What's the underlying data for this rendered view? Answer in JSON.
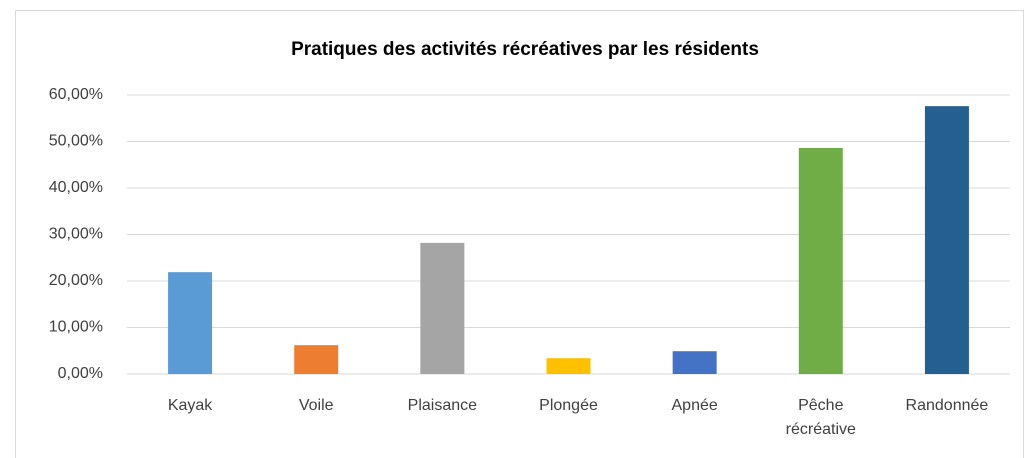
{
  "chart_data": {
    "type": "bar",
    "title": "Pratiques des activités récréatives par les résidents",
    "categories": [
      "Kayak",
      "Voile",
      "Plaisance",
      "Plongée",
      "Apnée",
      "Pêche récréative",
      "Randonnée"
    ],
    "values": [
      21.9,
      6.2,
      28.2,
      3.4,
      4.9,
      48.6,
      57.6
    ],
    "colors": [
      "#5b9bd5",
      "#ed7d31",
      "#a5a5a5",
      "#ffc000",
      "#4472c4",
      "#70ad47",
      "#255e91"
    ],
    "ylim": [
      0,
      60
    ],
    "yticks": [
      {
        "value": 0,
        "label": "0,00%"
      },
      {
        "value": 10,
        "label": "10,00%"
      },
      {
        "value": 20,
        "label": "20,00%"
      },
      {
        "value": 30,
        "label": "30,00%"
      },
      {
        "value": 40,
        "label": "40,00%"
      },
      {
        "value": 50,
        "label": "50,00%"
      },
      {
        "value": 60,
        "label": "60,00%"
      }
    ],
    "grid": true
  }
}
